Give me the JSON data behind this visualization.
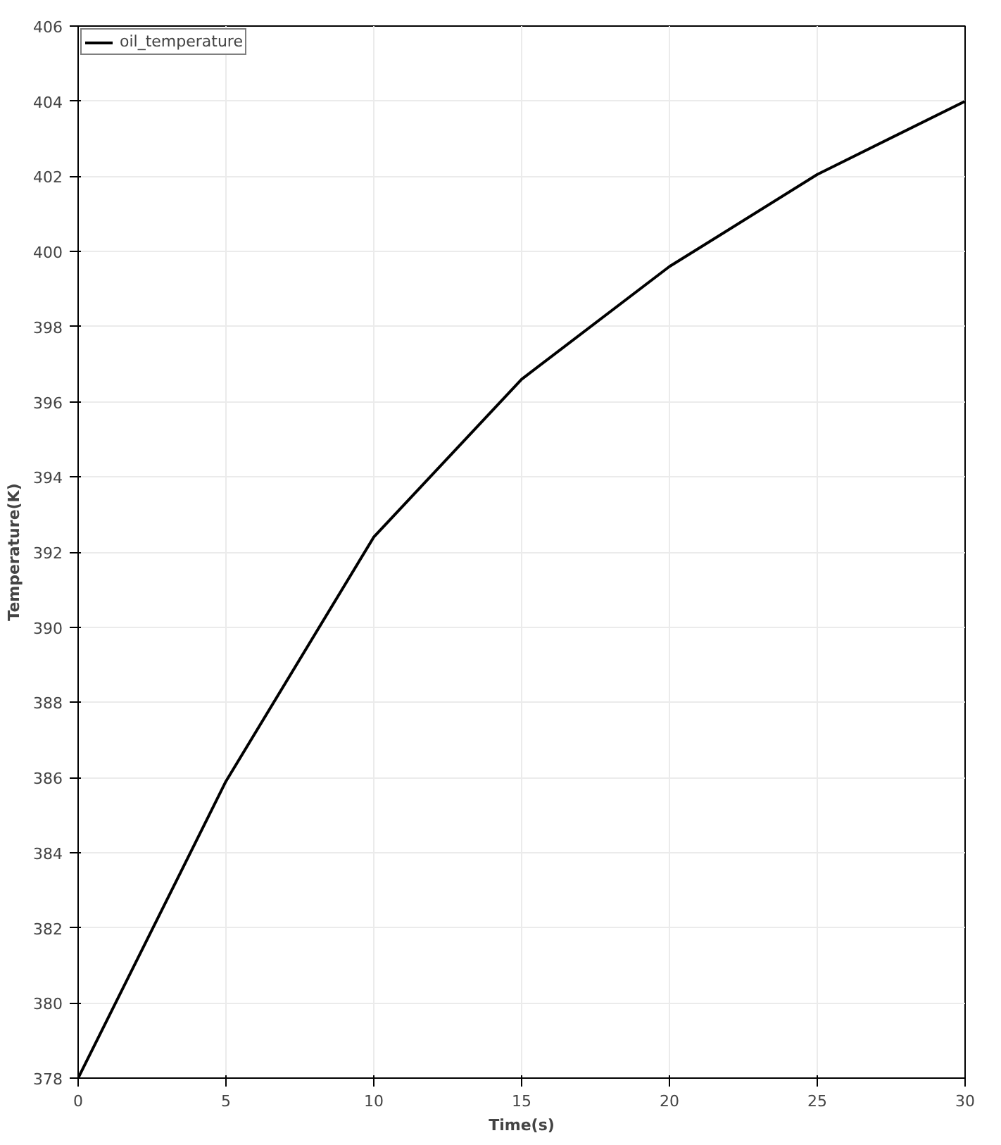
{
  "chart_data": {
    "type": "line",
    "xlabel": "Time(s)",
    "ylabel": "Temperature(K)",
    "x": [
      0,
      5,
      10,
      15,
      20,
      25,
      30
    ],
    "series": [
      {
        "name": "oil_temperature",
        "color": "#000000",
        "values": [
          378,
          385.9,
          392.4,
          396.6,
          399.6,
          402.05,
          404.0
        ]
      }
    ],
    "xlim": [
      0,
      30
    ],
    "xticks": [
      0,
      5,
      10,
      15,
      20,
      25,
      30
    ],
    "ylim": [
      378,
      406
    ],
    "yticks": [
      378,
      380,
      382,
      384,
      386,
      388,
      390,
      392,
      394,
      396,
      398,
      400,
      402,
      404,
      406
    ],
    "grid": true,
    "legend": "top left",
    "marker": "none",
    "line_style": "solid"
  }
}
